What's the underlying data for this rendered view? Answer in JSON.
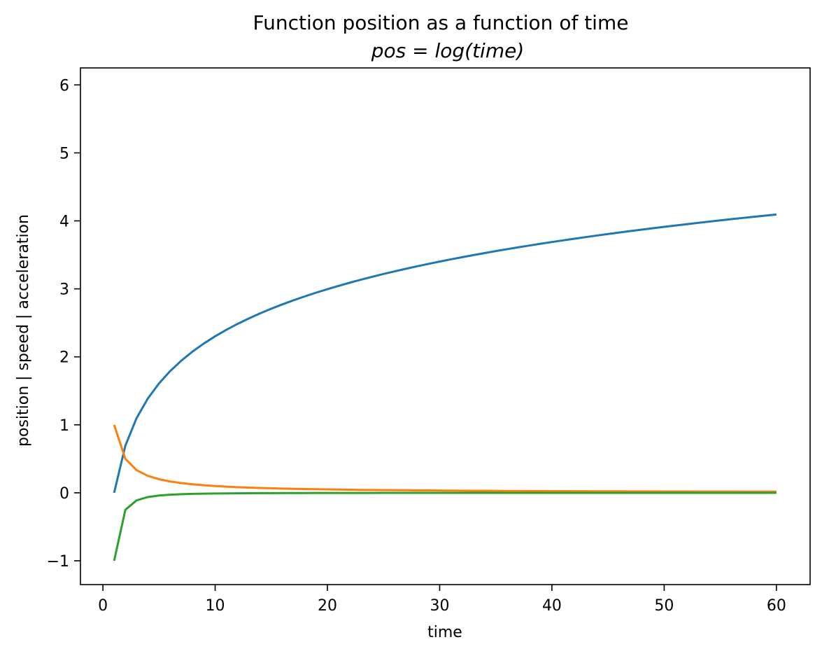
{
  "chart_data": {
    "type": "line",
    "title": "Function position as a function of time",
    "subtitle": "pos = log(time)",
    "xlabel": "time",
    "ylabel": "position | speed | acceleration",
    "xlim": [
      -2.0,
      63.0
    ],
    "ylim": [
      -1.35,
      6.25
    ],
    "xticks": [
      0,
      10,
      20,
      30,
      40,
      50,
      60
    ],
    "yticks": [
      -1,
      0,
      1,
      2,
      3,
      4,
      5,
      6
    ],
    "ytick_labels": [
      "−1",
      "0",
      "1",
      "2",
      "3",
      "4",
      "5",
      "6"
    ],
    "grid": false,
    "x_range": [
      1,
      60
    ],
    "series": [
      {
        "name": "position",
        "color": "#1f77b4",
        "formula": "log(t)"
      },
      {
        "name": "speed",
        "color": "#ff7f0e",
        "formula": "1/t"
      },
      {
        "name": "acceleration",
        "color": "#2ca02c",
        "formula": "-1/t^2"
      }
    ]
  }
}
